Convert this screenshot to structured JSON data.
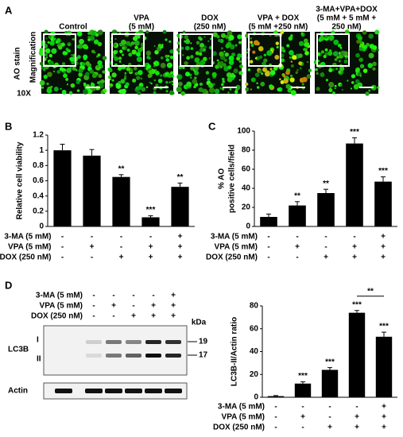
{
  "panel_labels": [
    "A",
    "B",
    "C",
    "D"
  ],
  "microscopy": {
    "side_labels": {
      "stain": "AO stain",
      "magnification": "Magnification",
      "objective": "10X"
    },
    "columns": [
      [
        "Control"
      ],
      [
        "VPA",
        "(5 mM)"
      ],
      [
        "DOX",
        "(250 nM)"
      ],
      [
        "VPA + DOX",
        "(5 mM +250 nM)"
      ],
      [
        "3-MA+VPA+DOX",
        "(5 mM + 5 mM +",
        "250 nM)"
      ]
    ]
  },
  "blot": {
    "treatments": [
      {
        "name": "3-MA (5 mM)",
        "signs": [
          "-",
          "-",
          "-",
          "-",
          "+"
        ]
      },
      {
        "name": "VPA (5 mM)",
        "signs": [
          "-",
          "+",
          "-",
          "+",
          "+"
        ]
      },
      {
        "name": "DOX (250 nM)",
        "signs": [
          "-",
          "-",
          "+",
          "+",
          "+"
        ]
      }
    ],
    "protein": "LC3B",
    "bands": [
      "I",
      "II"
    ],
    "kda_label": "kDa",
    "kda": [
      "19",
      "17"
    ],
    "loading_control": "Actin"
  },
  "chart_data": [
    {
      "type": "bar",
      "y_label": [
        "Relative cell viability"
      ],
      "values": [
        1.0,
        0.93,
        0.65,
        0.12,
        0.52
      ],
      "errors": [
        0.08,
        0.08,
        0.03,
        0.02,
        0.05
      ],
      "annotations": [
        null,
        null,
        "**",
        "***",
        "**"
      ],
      "color": "#000000",
      "ylim": [
        0,
        1.2
      ],
      "yticks": [
        0,
        0.2,
        0.4,
        0.6,
        0.8,
        1,
        {
          "value": 1.2,
          "label": "1.2"
        }
      ],
      "treatments": [
        {
          "name": "3-MA (5 mM)",
          "signs": [
            "-",
            "-",
            "-",
            "-",
            "+"
          ]
        },
        {
          "name": "VPA (5 mM)",
          "signs": [
            "-",
            "+",
            "-",
            "+",
            "+"
          ]
        },
        {
          "name": "DOX (250 nM)",
          "signs": [
            "-",
            "-",
            "+",
            "+",
            "+"
          ]
        }
      ]
    },
    {
      "type": "bar",
      "y_label": [
        "% AO",
        "positive cells/field"
      ],
      "values": [
        10,
        22,
        35,
        87,
        47
      ],
      "errors": [
        3,
        4,
        4,
        6,
        5
      ],
      "annotations": [
        null,
        "**",
        "**",
        "***",
        "***"
      ],
      "color": "#000000",
      "ylim": [
        0,
        100
      ],
      "yticks": [
        0,
        20,
        40,
        60,
        80,
        100
      ],
      "treatments": [
        {
          "name": "3-MA (5 mM)",
          "signs": [
            "-",
            "-",
            "-",
            "-",
            "+"
          ]
        },
        {
          "name": "VPA (5 mM)",
          "signs": [
            "-",
            "+",
            "-",
            "+",
            "+"
          ]
        },
        {
          "name": "DOX (250 nM)",
          "signs": [
            "-",
            "-",
            "+",
            "+",
            "+"
          ]
        }
      ]
    },
    {
      "type": "bar",
      "y_label": [
        "LC3B-II/Actin ratio"
      ],
      "values": [
        1,
        12,
        24,
        74,
        53
      ],
      "errors": [
        0.5,
        1.5,
        2,
        2,
        4
      ],
      "annotations": [
        null,
        "***",
        "***",
        "***",
        "***"
      ],
      "brackets": [
        {
          "between": [
            3,
            4
          ],
          "label": "**"
        }
      ],
      "color": "#000000",
      "ylim": [
        0,
        80
      ],
      "yticks": [
        0,
        20,
        40,
        60,
        80
      ],
      "treatments": [
        {
          "name": "3-MA (5 mM)",
          "signs": [
            "-",
            "-",
            "-",
            "-",
            "+"
          ]
        },
        {
          "name": "VPA (5 mM)",
          "signs": [
            "-",
            "+",
            "-",
            "+",
            "+"
          ]
        },
        {
          "name": "DOX (250 nM)",
          "signs": [
            "-",
            "-",
            "+",
            "+",
            "+"
          ]
        }
      ]
    }
  ]
}
